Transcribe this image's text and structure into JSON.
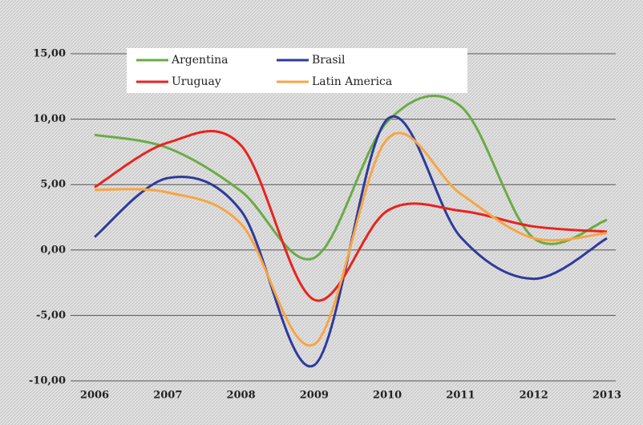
{
  "chart_data": {
    "type": "line",
    "x": [
      2006,
      2007,
      2008,
      2009,
      2010,
      2011,
      2012,
      2013
    ],
    "series": [
      {
        "name": "Argentina",
        "color": "#6aab46",
        "values": [
          8.8,
          7.8,
          4.5,
          -0.6,
          9.8,
          11.0,
          0.9,
          2.3
        ]
      },
      {
        "name": "Brasil",
        "color": "#2e3a9c",
        "values": [
          1.0,
          5.5,
          3.0,
          -8.8,
          10.0,
          1.0,
          -2.2,
          0.9
        ]
      },
      {
        "name": "Uruguay",
        "color": "#e8231f",
        "values": [
          4.8,
          8.2,
          8.0,
          -3.8,
          3.0,
          3.0,
          1.8,
          1.4
        ]
      },
      {
        "name": "Latin America",
        "color": "#f7a544",
        "values": [
          4.6,
          4.4,
          2.0,
          -7.2,
          8.5,
          4.3,
          0.9,
          1.3
        ]
      }
    ],
    "xlim": [
      2006,
      2013
    ],
    "xticks": [
      2006,
      2007,
      2008,
      2009,
      2010,
      2011,
      2012,
      2013
    ],
    "ylim": [
      -10,
      15
    ],
    "yticks": [
      {
        "value": -10,
        "label": "-10,00"
      },
      {
        "value": -5,
        "label": "-5,00"
      },
      {
        "value": 0,
        "label": "0,00"
      },
      {
        "value": 5,
        "label": "5,00"
      },
      {
        "value": 10,
        "label": "10,00"
      },
      {
        "value": 15,
        "label": "15,00"
      }
    ],
    "grid": true,
    "legend": "top"
  }
}
